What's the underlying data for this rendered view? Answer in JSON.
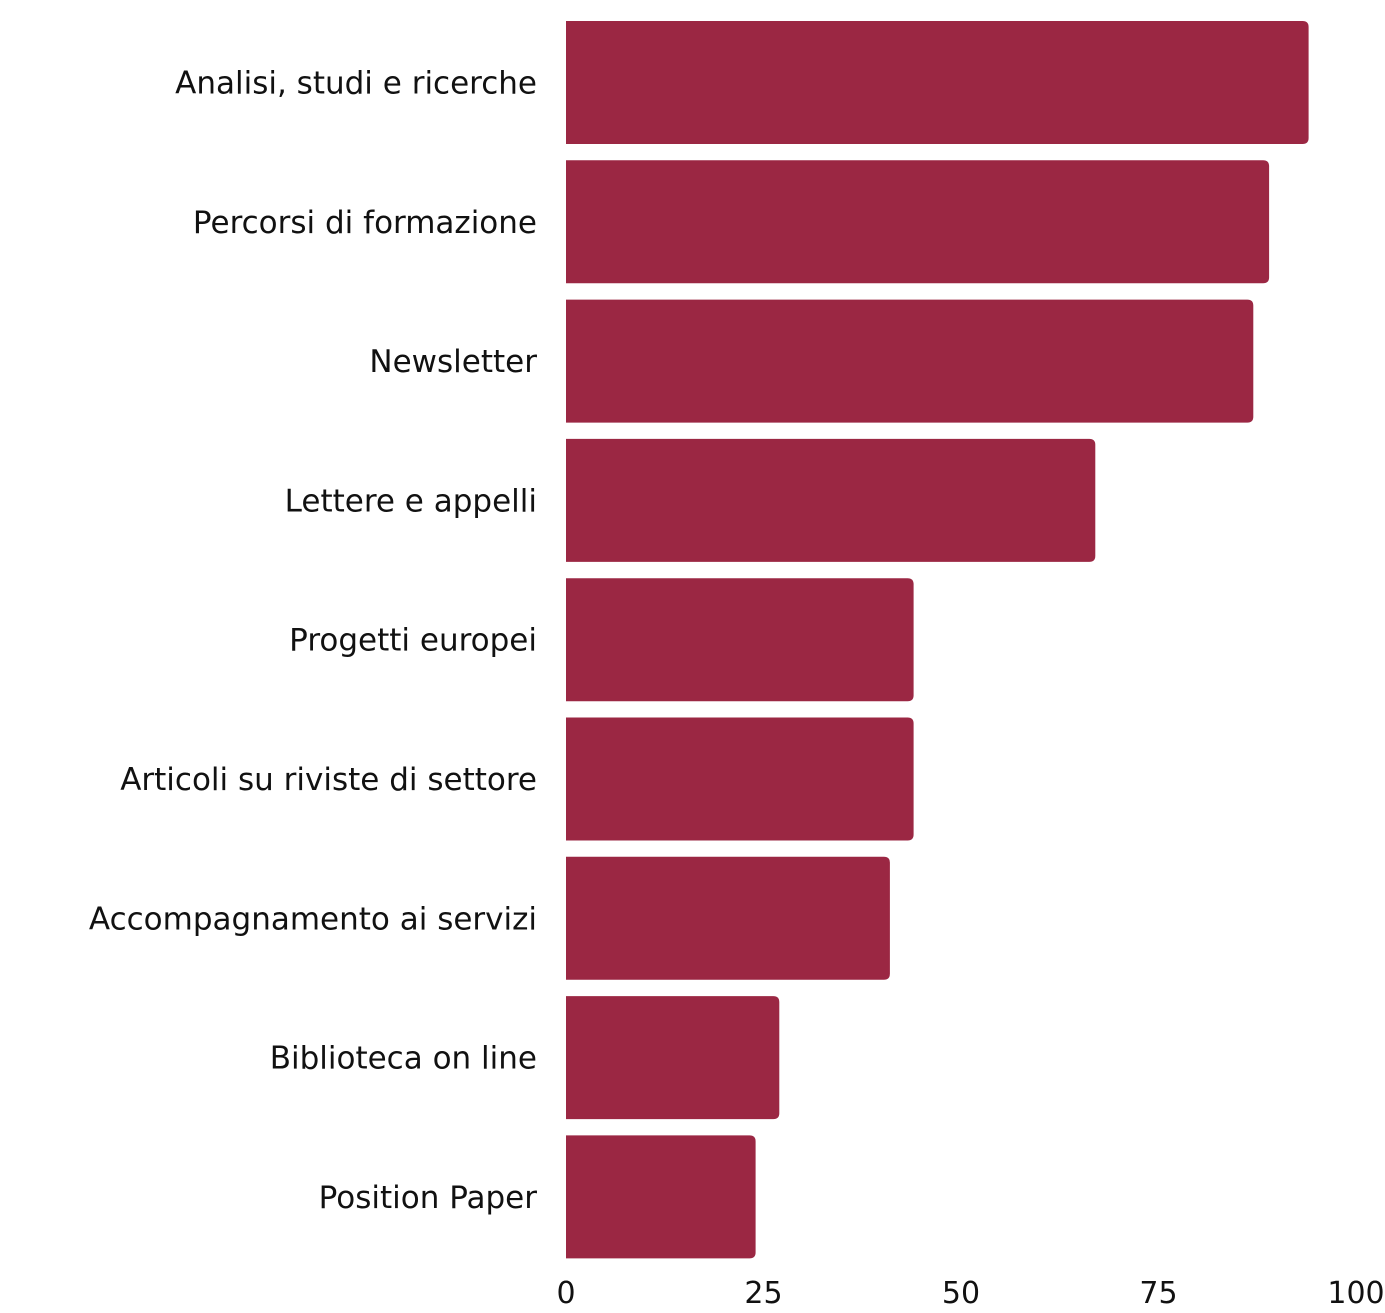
{
  "chart_data": {
    "type": "bar",
    "orientation": "horizontal",
    "categories": [
      "Analisi, studi e ricerche",
      "Percorsi di formazione",
      "Newsletter",
      "Lettere e appelli",
      "Progetti europei",
      "Articoli su riviste di settore",
      "Accompagnamento ai servizi",
      "Biblioteca on line",
      "Position Paper"
    ],
    "values": [
      94,
      89,
      87,
      67,
      44,
      44,
      41,
      27,
      24
    ],
    "xlim": [
      0,
      100
    ],
    "xticks": [
      0,
      25,
      50,
      75,
      100
    ],
    "title": "",
    "xlabel": "",
    "ylabel": "",
    "grid": false,
    "legend": "none",
    "bar_color": "#9b2743"
  }
}
